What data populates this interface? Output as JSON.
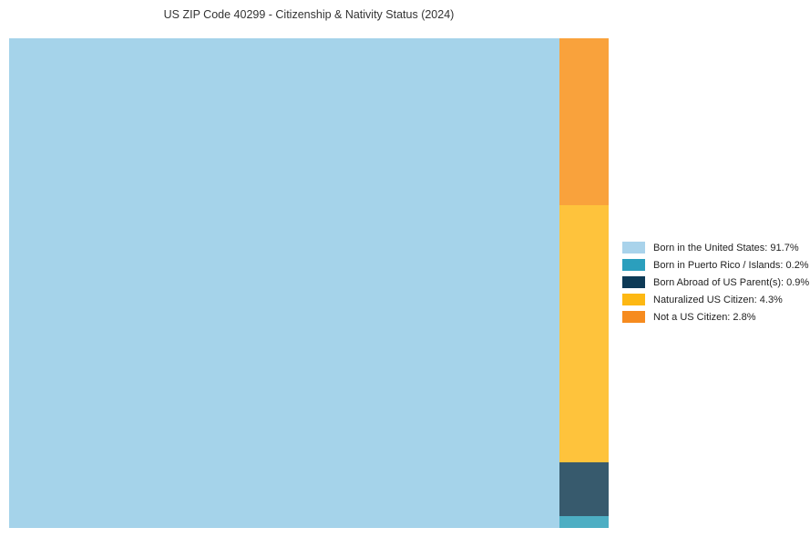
{
  "chart_data": {
    "type": "treemap",
    "title": "US ZIP Code 40299 - Citizenship & Nativity Status (2024)",
    "value_unit": "%",
    "legend_position": "right",
    "series": [
      {
        "label": "Born in the United States",
        "value": 91.7,
        "fill": "#a5d3ea",
        "swatch": "#a9d3eb",
        "legend_text": "Born in the United States: 91.7%"
      },
      {
        "label": "Born in Puerto Rico / Islands",
        "value": 0.2,
        "fill": "#4daec3",
        "swatch": "#2b9fbd",
        "legend_text": "Born in Puerto Rico / Islands: 0.2%"
      },
      {
        "label": "Born Abroad of US Parent(s)",
        "value": 0.9,
        "fill": "#375a6d",
        "swatch": "#0d3a56",
        "legend_text": "Born Abroad of US Parent(s): 0.9%"
      },
      {
        "label": "Naturalized US Citizen",
        "value": 4.3,
        "fill": "#fec33c",
        "swatch": "#fdb813",
        "legend_text": "Naturalized US Citizen: 4.3%"
      },
      {
        "label": "Not a US Citizen",
        "value": 2.8,
        "fill": "#f9a23c",
        "swatch": "#f68b1f",
        "legend_text": "Not a US Citizen: 2.8%"
      }
    ]
  }
}
